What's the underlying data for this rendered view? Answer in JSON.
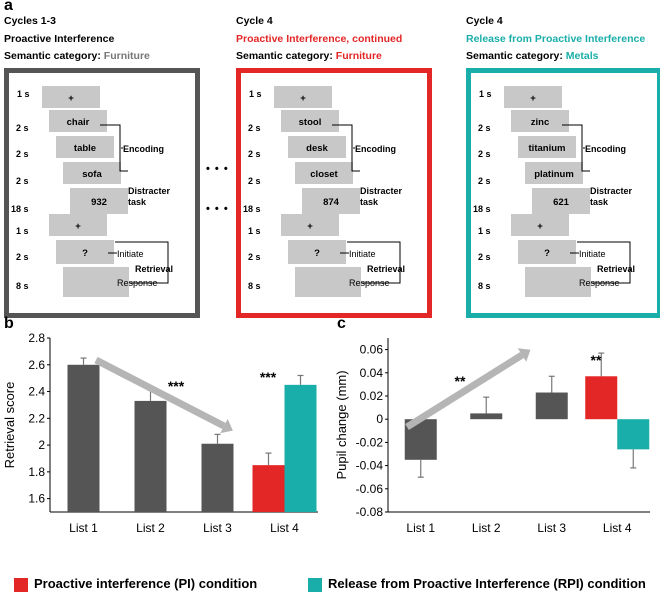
{
  "panel_a": {
    "letter": "a",
    "columns": [
      {
        "line1": "Cycles 1-3",
        "line2": "Proactive Interference",
        "line2_color": "#000000",
        "cat_label": "Semantic category: ",
        "cat_value": "Furniture",
        "cat_color": "#777777",
        "frame_color": "#555555",
        "words": [
          "+",
          "chair",
          "table",
          "sofa",
          "932",
          "+",
          "?",
          ""
        ]
      },
      {
        "line1": "Cycle 4",
        "line2": "Proactive Interference, continued",
        "line2_color": "#e32626",
        "cat_label": "Semantic category: ",
        "cat_value": "Furniture",
        "cat_color": "#e32626",
        "frame_color": "#e32626",
        "words": [
          "+",
          "stool",
          "desk",
          "closet",
          "874",
          "+",
          "?",
          ""
        ]
      },
      {
        "line1": "Cycle 4",
        "line2": "Release from Proactive Interference",
        "line2_color": "#1aaeaa",
        "cat_label": "Semantic category: ",
        "cat_value": "Metals",
        "cat_color": "#1aaeaa",
        "frame_color": "#1aaeaa",
        "words": [
          "+",
          "zinc",
          "titanium",
          "platinum",
          "621",
          "+",
          "?",
          ""
        ]
      }
    ],
    "durations": [
      "1 s",
      "2 s",
      "2 s",
      "2 s",
      "18 s",
      "1 s",
      "2 s",
      "8 s"
    ],
    "labels": {
      "encoding": "Encoding",
      "distracter_1": "Distracter",
      "distracter_2": "task",
      "initiate": "Initiate",
      "retrieval": "Retrieval",
      "response": "Response"
    },
    "ellipsis": "• • •"
  },
  "panel_b": {
    "letter": "b"
  },
  "panel_c": {
    "letter": "c"
  },
  "legend": {
    "pi": {
      "label": "Proactive interference (PI) condition",
      "color": "#e32626"
    },
    "rpi": {
      "label": "Release from Proactive Interference (RPI) condition",
      "color": "#1aaeaa"
    }
  },
  "chart_data": [
    {
      "type": "bar",
      "panel": "b",
      "categories": [
        "List 1",
        "List 2",
        "List 3",
        "List 4"
      ],
      "series": [
        {
          "name": "Cycles 1-3",
          "color": "#555555",
          "values": [
            2.6,
            2.33,
            2.01,
            null
          ],
          "errors": [
            0.05,
            0.08,
            0.07,
            null
          ]
        },
        {
          "name": "Proactive interference (PI) condition",
          "color": "#e32626",
          "values": [
            null,
            null,
            null,
            1.85
          ],
          "errors": [
            null,
            null,
            null,
            0.09
          ]
        },
        {
          "name": "Release from Proactive Interference (RPI) condition",
          "color": "#1aaeaa",
          "values": [
            null,
            null,
            null,
            2.45
          ],
          "errors": [
            null,
            null,
            null,
            0.07
          ]
        }
      ],
      "ylabel": "Retrieval score",
      "ylim": [
        1.5,
        2.8
      ],
      "yticks": [
        "1.6",
        "1.8",
        "2",
        "2.2",
        "2.4",
        "2.6",
        "2.8"
      ],
      "annotations": [
        "***",
        "***"
      ],
      "trend_arrow": "decreasing"
    },
    {
      "type": "bar",
      "panel": "c",
      "categories": [
        "List 1",
        "List 2",
        "List 3",
        "List 4"
      ],
      "series": [
        {
          "name": "Cycles 1-3",
          "color": "#555555",
          "values": [
            -0.035,
            0.005,
            0.023,
            null
          ],
          "errors": [
            0.015,
            0.014,
            0.014,
            null
          ]
        },
        {
          "name": "Proactive interference (PI) condition",
          "color": "#e32626",
          "values": [
            null,
            null,
            null,
            0.037
          ],
          "errors": [
            null,
            null,
            null,
            0.02
          ]
        },
        {
          "name": "Release from Proactive Interference (RPI) condition",
          "color": "#1aaeaa",
          "values": [
            null,
            null,
            null,
            -0.026
          ],
          "errors": [
            null,
            null,
            null,
            0.016
          ]
        }
      ],
      "ylabel": "Pupil change (mm)",
      "ylim": [
        -0.08,
        0.07
      ],
      "yticks": [
        "-0.08",
        "-0.06",
        "-0.04",
        "-0.02",
        "0",
        "0.02",
        "0.04",
        "0.06"
      ],
      "annotations": [
        "**",
        "**"
      ],
      "trend_arrow": "increasing"
    }
  ]
}
